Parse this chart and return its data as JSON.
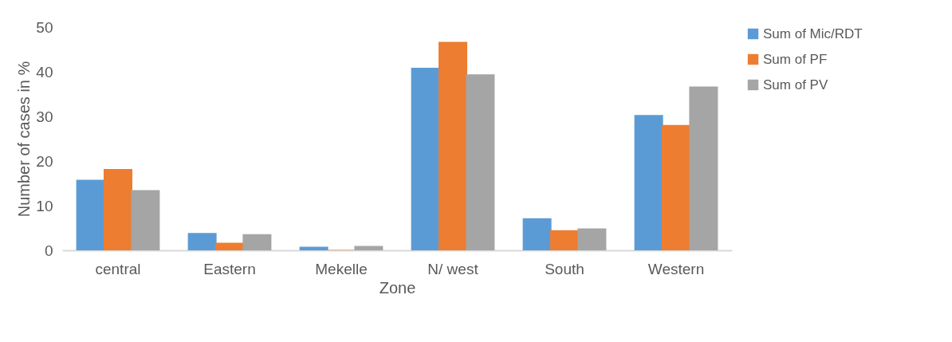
{
  "chart_data": {
    "type": "bar",
    "xlabel": "Zone",
    "ylabel": "Number of cases in %",
    "categories": [
      "central",
      "Eastern",
      "Mekelle",
      "N/ west",
      "South",
      "Western"
    ],
    "series": [
      {
        "name": "Sum of  Mic/RDT",
        "color": "#5b9bd5",
        "values": [
          15.8,
          3.9,
          0.8,
          40.9,
          7.2,
          30.3
        ]
      },
      {
        "name": "Sum of  PF",
        "color": "#ed7d31",
        "values": [
          18.2,
          1.7,
          0.1,
          46.7,
          4.5,
          28.1
        ]
      },
      {
        "name": "Sum of  PV",
        "color": "#a5a5a5",
        "values": [
          13.5,
          3.6,
          1.0,
          39.4,
          4.9,
          36.7
        ]
      }
    ],
    "ylim": [
      0,
      50
    ],
    "yticks": [
      0,
      10,
      20,
      30,
      40,
      50
    ],
    "grid": false,
    "legend": "right"
  }
}
